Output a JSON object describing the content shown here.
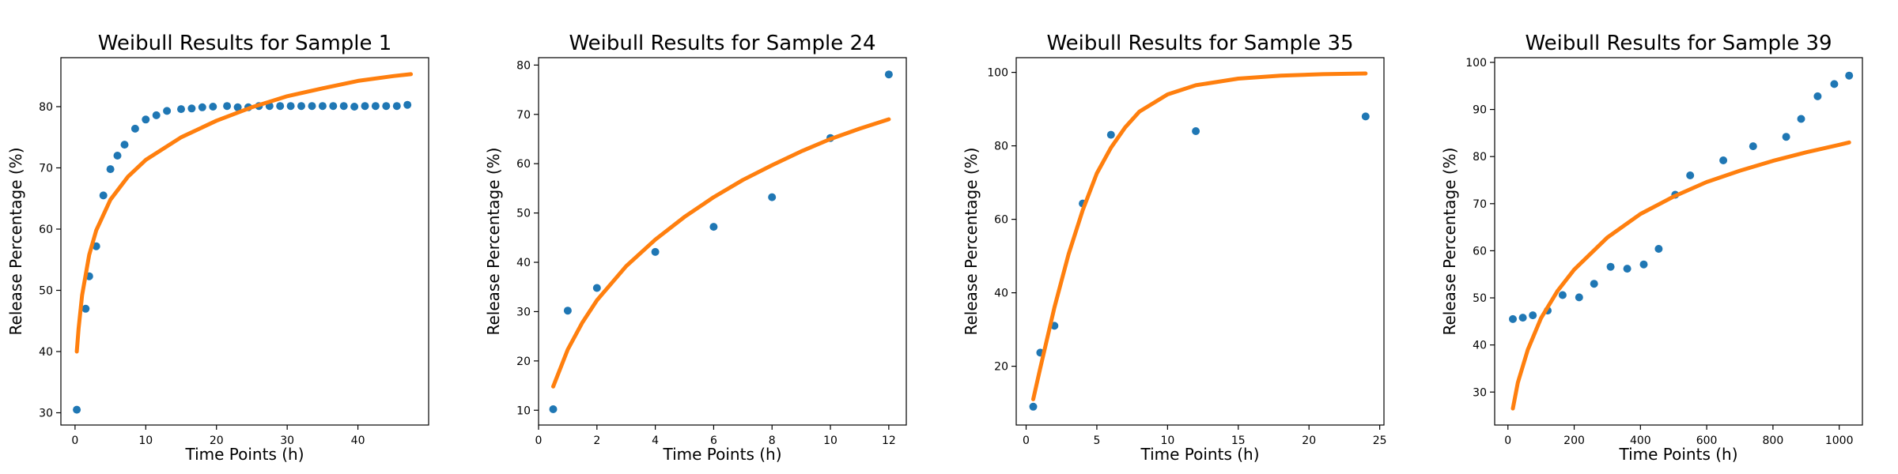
{
  "figure": {
    "background": "#ffffff"
  },
  "colors": {
    "data_points": "#1f77b4",
    "fit_curve": "#ff7f0e",
    "axes": "#000000"
  },
  "chart_data": [
    {
      "type": "scatter",
      "title": "Weibull Results for Sample 1",
      "xlabel": "Time Points (h)",
      "ylabel": "Release Percentage (%)",
      "xlim": [
        -2,
        50
      ],
      "ylim": [
        28,
        88
      ],
      "xticks": [
        0,
        10,
        20,
        30,
        40
      ],
      "yticks": [
        30,
        40,
        50,
        60,
        70,
        80
      ],
      "grid": false,
      "legend": "none",
      "series": [
        {
          "role": "observed",
          "marker": "circle",
          "x": [
            0.25,
            1.5,
            2,
            3,
            4,
            5,
            6,
            7,
            8.5,
            10,
            11.5,
            13,
            15,
            16.5,
            18,
            19.5,
            21.5,
            23,
            24.5,
            26,
            27.5,
            29,
            30.5,
            32,
            33.5,
            35,
            36.5,
            38,
            39.5,
            41,
            42.5,
            44,
            45.5,
            47
          ],
          "y": [
            30.5,
            47,
            52.3,
            57.2,
            65.5,
            69.8,
            72,
            73.8,
            76.4,
            77.9,
            78.6,
            79.3,
            79.6,
            79.7,
            79.9,
            80,
            80.1,
            79.9,
            79.9,
            80.1,
            80.1,
            80.1,
            80.1,
            80.1,
            80.1,
            80.1,
            80.1,
            80.1,
            80,
            80.1,
            80.1,
            80.1,
            80.1,
            80.3
          ]
        },
        {
          "role": "fit",
          "line": "solid",
          "x": [
            0.25,
            0.5,
            1,
            2,
            3,
            5,
            7.5,
            10,
            15,
            20,
            25,
            30,
            35,
            40,
            45,
            47.5
          ],
          "y": [
            40,
            43.8,
            49.2,
            55.8,
            59.8,
            64.8,
            68.6,
            71.3,
            75,
            77.7,
            79.9,
            81.7,
            83,
            84.2,
            85,
            85.3
          ]
        }
      ]
    },
    {
      "type": "scatter",
      "title": "Weibull Results for Sample 24",
      "xlabel": "Time Points (h)",
      "ylabel": "Release Percentage (%)",
      "xlim": [
        0,
        12.6
      ],
      "ylim": [
        7,
        81.5
      ],
      "xticks": [
        0,
        2,
        4,
        6,
        8,
        10,
        12
      ],
      "yticks": [
        10,
        20,
        30,
        40,
        50,
        60,
        70,
        80
      ],
      "grid": false,
      "legend": "none",
      "series": [
        {
          "role": "observed",
          "marker": "circle",
          "x": [
            0.5,
            1,
            2,
            4,
            6,
            8,
            10,
            12
          ],
          "y": [
            10.2,
            30.2,
            34.8,
            42.1,
            47.2,
            53.2,
            65.2,
            78.1
          ]
        },
        {
          "role": "fit",
          "line": "solid",
          "x": [
            0.5,
            1,
            1.5,
            2,
            3,
            4,
            5,
            6,
            7,
            8,
            9,
            10,
            11,
            12
          ],
          "y": [
            14.8,
            22.3,
            27.8,
            32.3,
            39.2,
            44.6,
            49.2,
            53.2,
            56.7,
            59.7,
            62.5,
            65,
            67.1,
            69
          ]
        }
      ]
    },
    {
      "type": "scatter",
      "title": "Weibull Results for Sample 35",
      "xlabel": "Time Points (h)",
      "ylabel": "Release Percentage (%)",
      "xlim": [
        -0.7,
        25.3
      ],
      "ylim": [
        4,
        104
      ],
      "xticks": [
        0,
        5,
        10,
        15,
        20,
        25
      ],
      "yticks": [
        20,
        40,
        60,
        80,
        100
      ],
      "grid": false,
      "legend": "none",
      "series": [
        {
          "role": "observed",
          "marker": "circle",
          "x": [
            0.5,
            1,
            2,
            4,
            6,
            12,
            24
          ],
          "y": [
            9,
            23.7,
            31,
            64.3,
            83,
            84,
            88
          ]
        },
        {
          "role": "fit",
          "line": "solid",
          "x": [
            0.5,
            1,
            2,
            3,
            4,
            5,
            6,
            7,
            8,
            10,
            12,
            15,
            18,
            21,
            24
          ],
          "y": [
            11,
            19.5,
            36,
            50.5,
            62.5,
            72.5,
            79.5,
            85,
            89.3,
            94,
            96.5,
            98.3,
            99.1,
            99.5,
            99.7
          ]
        }
      ]
    },
    {
      "type": "scatter",
      "title": "Weibull Results for Sample 39",
      "xlabel": "Time Points (h)",
      "ylabel": "Release Percentage (%)",
      "xlim": [
        -40,
        1070
      ],
      "ylim": [
        23,
        101
      ],
      "xticks": [
        0,
        200,
        400,
        600,
        800,
        1000
      ],
      "yticks": [
        30,
        40,
        50,
        60,
        70,
        80,
        90,
        100
      ],
      "grid": false,
      "legend": "none",
      "series": [
        {
          "role": "observed",
          "marker": "circle",
          "x": [
            15,
            45,
            75,
            120,
            165,
            215,
            260,
            310,
            360,
            410,
            455,
            505,
            550,
            650,
            740,
            840,
            885,
            935,
            985,
            1030
          ],
          "y": [
            45.5,
            45.8,
            46.3,
            47.3,
            50.6,
            50.1,
            53,
            56.6,
            56.2,
            57.1,
            60.4,
            71.9,
            76,
            79.2,
            82.2,
            84.2,
            88,
            92.8,
            95.4,
            97.2
          ]
        },
        {
          "role": "fit",
          "line": "solid",
          "x": [
            15,
            30,
            60,
            100,
            150,
            200,
            300,
            400,
            500,
            600,
            700,
            800,
            900,
            1000,
            1030
          ],
          "y": [
            26.5,
            32,
            39,
            45.7,
            51.5,
            56,
            62.8,
            67.8,
            71.5,
            74.6,
            77,
            79.1,
            80.9,
            82.5,
            83
          ]
        }
      ]
    }
  ]
}
